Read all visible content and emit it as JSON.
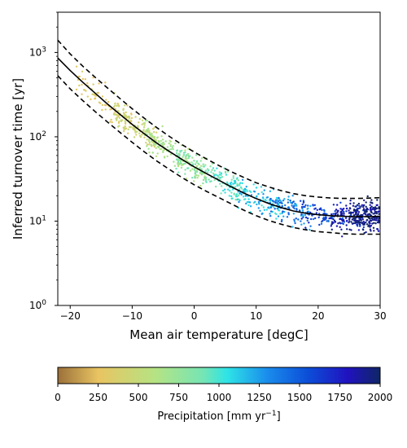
{
  "chart_data": {
    "type": "scatter",
    "title": "",
    "xlabel": "Mean air temperature [degC]",
    "ylabel": "Inferred turnover time [yr]",
    "xlim": [
      -22,
      30
    ],
    "ylim": [
      1,
      3000
    ],
    "yscale": "log",
    "grid": false,
    "x_ticks": [
      -20,
      -10,
      0,
      10,
      20,
      30
    ],
    "y_ticks": [
      {
        "value": 1,
        "base": "10",
        "exp": "0"
      },
      {
        "value": 10,
        "base": "10",
        "exp": "1"
      },
      {
        "value": 100,
        "base": "10",
        "exp": "2"
      },
      {
        "value": 1000,
        "base": "10",
        "exp": "3"
      }
    ],
    "fit_lines": [
      {
        "role": "central fit",
        "style": "solid",
        "color": "#000000",
        "x": [
          -22,
          -20,
          -18,
          -16,
          -14,
          -12,
          -10,
          -8,
          -6,
          -4,
          -2,
          0,
          2,
          4,
          6,
          8,
          10,
          12,
          14,
          16,
          18,
          20,
          22,
          24,
          26,
          28,
          30
        ],
        "y": [
          860,
          610,
          445,
          330,
          245,
          185,
          140,
          108,
          84,
          67,
          54,
          44,
          36.5,
          30.5,
          25.5,
          21.5,
          18.5,
          16.2,
          14.5,
          13.2,
          12.4,
          11.9,
          11.6,
          11.4,
          11.3,
          11.3,
          11.4
        ]
      },
      {
        "role": "upper bound",
        "style": "dashed",
        "color": "#000000",
        "x": [
          -22,
          -20,
          -18,
          -16,
          -14,
          -12,
          -10,
          -8,
          -6,
          -4,
          -2,
          0,
          2,
          4,
          6,
          8,
          10,
          12,
          14,
          16,
          18,
          20,
          22,
          24,
          26,
          28,
          30
        ],
        "y": [
          1400,
          960,
          690,
          510,
          380,
          285,
          215,
          165,
          128,
          101,
          81,
          66,
          54.5,
          45.5,
          38.5,
          33,
          28.5,
          25.5,
          23,
          21.2,
          20,
          19.3,
          18.8,
          18.6,
          18.6,
          18.7,
          19
        ]
      },
      {
        "role": "lower bound",
        "style": "dashed",
        "color": "#000000",
        "x": [
          -22,
          -20,
          -18,
          -16,
          -14,
          -12,
          -10,
          -8,
          -6,
          -4,
          -2,
          0,
          2,
          4,
          6,
          8,
          10,
          12,
          14,
          16,
          18,
          20,
          22,
          24,
          26,
          28,
          30
        ],
        "y": [
          530,
          370,
          270,
          200,
          150,
          113,
          86,
          66,
          51.5,
          41,
          33,
          27,
          22.5,
          19,
          16,
          13.5,
          11.6,
          10.2,
          9.2,
          8.4,
          7.9,
          7.5,
          7.3,
          7.1,
          7.0,
          7.0,
          7.0
        ]
      }
    ],
    "scatter_groups": [
      {
        "precip": 300,
        "x_range": [
          -19,
          -10
        ],
        "count": 90
      },
      {
        "precip": 450,
        "x_range": [
          -13,
          -6
        ],
        "count": 120
      },
      {
        "precip": 650,
        "x_range": [
          -8,
          2
        ],
        "count": 170
      },
      {
        "precip": 850,
        "x_range": [
          -3,
          8
        ],
        "count": 140
      },
      {
        "precip": 1050,
        "x_range": [
          3,
          14
        ],
        "count": 110
      },
      {
        "precip": 1250,
        "x_range": [
          7,
          19
        ],
        "count": 90
      },
      {
        "precip": 1450,
        "x_range": [
          12,
          24
        ],
        "count": 90
      },
      {
        "precip": 1650,
        "x_range": [
          17,
          28
        ],
        "count": 90
      },
      {
        "precip": 1850,
        "x_range": [
          22,
          30
        ],
        "count": 150
      },
      {
        "precip": 1980,
        "x_range": [
          25,
          30
        ],
        "count": 120
      }
    ],
    "colorbar": {
      "label_text": "Precipitation [mm yr",
      "label_sup": "−1",
      "label_close": "]",
      "min": 0,
      "max": 2000,
      "ticks": [
        0,
        250,
        500,
        750,
        1000,
        1250,
        1500,
        1750,
        2000
      ],
      "colormap": "terrain-like brown-yellow-green-cyan-blue-navy",
      "stops": [
        {
          "value": 0,
          "color": "#9b703a"
        },
        {
          "value": 250,
          "color": "#e9c462"
        },
        {
          "value": 600,
          "color": "#b6e383"
        },
        {
          "value": 900,
          "color": "#76e5b4"
        },
        {
          "value": 1050,
          "color": "#2ee4e6"
        },
        {
          "value": 1300,
          "color": "#1a8cec"
        },
        {
          "value": 1550,
          "color": "#0c4ed8"
        },
        {
          "value": 1800,
          "color": "#2012bf"
        },
        {
          "value": 2000,
          "color": "#0f2665"
        }
      ]
    }
  }
}
